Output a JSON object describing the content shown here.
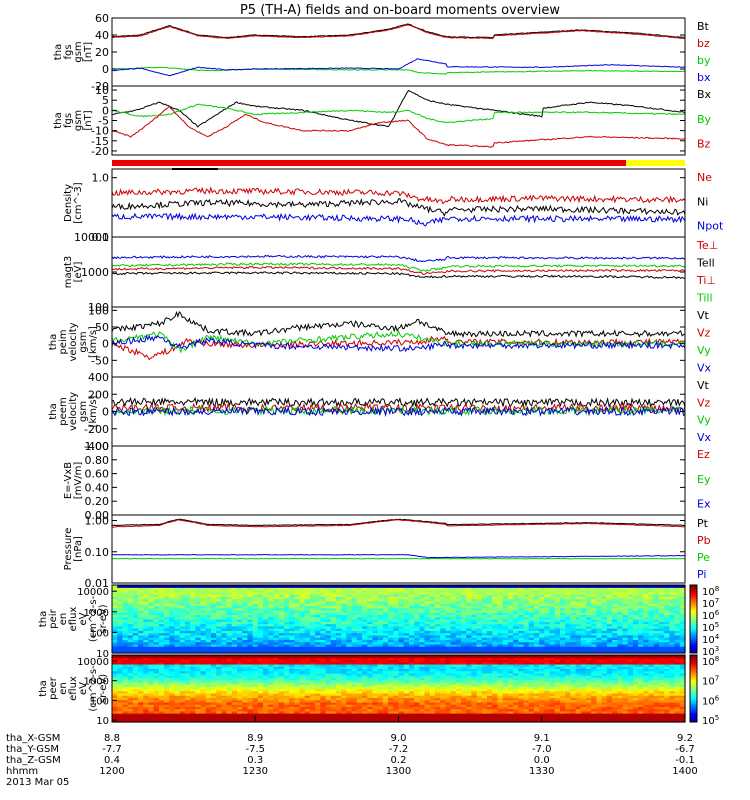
{
  "title": "P5 (TH-A) fields and on-board moments overview",
  "colors": {
    "black": "#000000",
    "red": "#cc0000",
    "bright_red": "#ee0000",
    "green": "#00cc00",
    "blue": "#0000dd",
    "yellow": "#ffff00"
  },
  "x_axis": {
    "hhmm_ticks": [
      "1200",
      "1230",
      "1300",
      "1330",
      "1400"
    ],
    "rows": [
      {
        "label": "tha_X-GSM",
        "values": [
          "8.8",
          "8.9",
          "9.0",
          "9.1",
          "9.2"
        ]
      },
      {
        "label": "tha_Y-GSM",
        "values": [
          "-7.7",
          "-7.5",
          "-7.2",
          "-7.0",
          "-6.7"
        ]
      },
      {
        "label": "tha_Z-GSM",
        "values": [
          "0.4",
          "0.3",
          "0.2",
          "0.0",
          "-0.1"
        ]
      },
      {
        "label": "hhmm",
        "values": [
          "1200",
          "1230",
          "1300",
          "1330",
          "1400"
        ]
      }
    ],
    "date": "2013 Mar 05"
  },
  "chart_data": [
    {
      "type": "line",
      "ylabel": [
        "tha",
        "fgs",
        "gsm",
        "[nT]"
      ],
      "ylim": [
        -20,
        60
      ],
      "yticks": [
        "60",
        "40",
        "20",
        "0",
        "-20"
      ],
      "legend": [
        {
          "label": "Bt",
          "color": "#000000"
        },
        {
          "label": "bz",
          "color": "#cc0000"
        },
        {
          "label": "by",
          "color": "#00cc00"
        },
        {
          "label": "bx",
          "color": "#0000dd"
        }
      ],
      "series": [
        {
          "name": "Bt",
          "color": "#000000",
          "x": [
            1200,
            1206,
            1212,
            1218,
            1224,
            1230,
            1240,
            1250,
            1258,
            1262,
            1266,
            1270,
            1280,
            1300,
            1320,
            1338,
            1350,
            1360,
            1400
          ],
          "y": [
            38,
            40,
            51,
            40,
            37,
            40,
            38,
            40,
            47,
            53,
            44,
            38,
            37,
            38,
            40,
            46,
            42,
            37,
            37
          ]
        },
        {
          "name": "bz",
          "color": "#cc0000",
          "x": [
            1200,
            1206,
            1212,
            1218,
            1224,
            1230,
            1240,
            1250,
            1258,
            1262,
            1266,
            1270,
            1280,
            1300,
            1320,
            1338,
            1350,
            1360,
            1400
          ],
          "y": [
            37,
            39,
            50,
            39,
            36,
            39,
            37,
            39,
            46,
            52,
            43,
            37,
            36,
            37,
            39,
            45,
            41,
            36,
            36
          ]
        },
        {
          "name": "by",
          "color": "#00cc00",
          "x": [
            1200,
            1210,
            1220,
            1230,
            1250,
            1262,
            1264,
            1270,
            1300,
            1340,
            1360,
            1400
          ],
          "y": [
            0,
            2,
            -2,
            0,
            -1,
            -1,
            -4,
            -6,
            -5,
            -2,
            -3,
            -3
          ]
        },
        {
          "name": "bx",
          "color": "#0000dd",
          "x": [
            1200,
            1206,
            1212,
            1218,
            1224,
            1230,
            1250,
            1260,
            1264,
            1270,
            1300,
            1330,
            1345,
            1360,
            1400
          ],
          "y": [
            -2,
            1,
            -8,
            2,
            -1,
            0,
            1,
            0,
            12,
            6,
            3,
            2,
            5,
            2,
            3
          ]
        }
      ]
    },
    {
      "type": "line",
      "ylabel": [
        "tha",
        "fgs",
        "gsm",
        "[nT]"
      ],
      "ylim": [
        -22,
        12
      ],
      "yticks": [
        "10",
        "5",
        "0",
        "-5",
        "-10",
        "-15",
        "-20"
      ],
      "legend": [
        {
          "label": "Bx",
          "color": "#000000"
        },
        {
          "label": "By",
          "color": "#00cc00"
        },
        {
          "label": "Bz",
          "color": "#cc0000"
        }
      ],
      "series": [
        {
          "name": "Bx",
          "color": "#000000",
          "x": [
            1200,
            1205,
            1210,
            1214,
            1218,
            1222,
            1226,
            1230,
            1240,
            1250,
            1258,
            1262,
            1266,
            1270,
            1280,
            1290,
            1300,
            1320,
            1340,
            1350,
            1360,
            1400
          ],
          "y": [
            -2,
            0,
            4,
            0,
            -8,
            -2,
            4,
            2,
            0,
            -5,
            -8,
            10,
            5,
            3,
            0,
            -3,
            -2,
            -2,
            4,
            2,
            -1,
            2
          ]
        },
        {
          "name": "By",
          "color": "#00cc00",
          "x": [
            1200,
            1206,
            1212,
            1218,
            1224,
            1230,
            1240,
            1250,
            1258,
            1262,
            1266,
            1270,
            1280,
            1300,
            1320,
            1340,
            1360,
            1400
          ],
          "y": [
            0,
            -3,
            -2,
            3,
            1,
            -2,
            -1,
            0,
            -1,
            0,
            -4,
            -6,
            -4,
            -2,
            -1,
            -1,
            -2,
            -2
          ]
        },
        {
          "name": "Bz",
          "color": "#cc0000",
          "x": [
            1200,
            1204,
            1208,
            1212,
            1216,
            1220,
            1224,
            1228,
            1232,
            1240,
            1250,
            1256,
            1262,
            1266,
            1270,
            1280,
            1300,
            1320,
            1340,
            1360,
            1380,
            1400
          ],
          "y": [
            -10,
            -13,
            -6,
            2,
            -8,
            -13,
            -8,
            -2,
            -6,
            -10,
            -10,
            -6,
            -5,
            -14,
            -17,
            -18,
            -15,
            -16,
            -13,
            -14,
            -15,
            -15
          ]
        }
      ]
    },
    {
      "type": "line",
      "ylabel": [
        "Density",
        "[cm^-3]"
      ],
      "yscale": "log",
      "ylim": [
        0.1,
        1.4
      ],
      "yticks": [
        "1.0",
        "0.1"
      ],
      "legend": [
        {
          "label": "Ne",
          "color": "#cc0000"
        },
        {
          "label": "Ni",
          "color": "#000000"
        },
        {
          "label": "Npot",
          "color": "#0000dd"
        }
      ],
      "series": [
        {
          "name": "Ne",
          "color": "#cc0000",
          "x": [
            1200,
            1220,
            1240,
            1260,
            1264,
            1270,
            1300,
            1330,
            1360,
            1400
          ],
          "y": [
            0.55,
            0.6,
            0.58,
            0.55,
            0.45,
            0.38,
            0.42,
            0.45,
            0.42,
            0.4
          ]
        },
        {
          "name": "Ni",
          "color": "#000000",
          "x": [
            1200,
            1220,
            1240,
            1260,
            1264,
            1270,
            1300,
            1330,
            1360,
            1400
          ],
          "y": [
            0.32,
            0.38,
            0.35,
            0.4,
            0.32,
            0.25,
            0.28,
            0.3,
            0.26,
            0.28
          ]
        },
        {
          "name": "Npot",
          "color": "#0000dd",
          "x": [
            1200,
            1230,
            1262,
            1265,
            1270,
            1300,
            1340,
            1400
          ],
          "y": [
            0.22,
            0.22,
            0.2,
            0.16,
            0.2,
            0.21,
            0.2,
            0.2
          ]
        }
      ]
    },
    {
      "type": "line",
      "ylabel": [
        "magt3",
        "[eV]"
      ],
      "yscale": "log",
      "ylim": [
        100,
        10000
      ],
      "yticks": [
        "10000",
        "1000",
        "100"
      ],
      "legend": [
        {
          "label": "Te⊥",
          "color": "#cc0000"
        },
        {
          "label": "Tell",
          "color": "#000000"
        },
        {
          "label": "Ti⊥",
          "color": "#cc0000"
        },
        {
          "label": "Till",
          "color": "#00cc00"
        }
      ],
      "series": [
        {
          "name": "Ti_blue",
          "color": "#0000dd",
          "x": [
            1200,
            1230,
            1260,
            1265,
            1270,
            1300,
            1340,
            1400
          ],
          "y": [
            2600,
            2800,
            2700,
            2000,
            2300,
            2600,
            2500,
            2500
          ]
        },
        {
          "name": "Till",
          "color": "#00cc00",
          "x": [
            1200,
            1230,
            1260,
            1265,
            1270,
            1300,
            1340,
            1400
          ],
          "y": [
            1500,
            1700,
            1600,
            1100,
            1300,
            1450,
            1500,
            1500
          ]
        },
        {
          "name": "Ti⊥",
          "color": "#cc0000",
          "x": [
            1200,
            1230,
            1260,
            1265,
            1270,
            1300,
            1340,
            1400
          ],
          "y": [
            1200,
            1350,
            1250,
            900,
            1000,
            1050,
            1100,
            1100
          ]
        },
        {
          "name": "Tell",
          "color": "#000000",
          "x": [
            1200,
            1230,
            1260,
            1265,
            1270,
            1300,
            1340,
            1400
          ],
          "y": [
            900,
            950,
            900,
            700,
            750,
            760,
            750,
            700
          ]
        }
      ]
    },
    {
      "type": "line",
      "ylabel": [
        "tha",
        "peim",
        "velocity",
        "gsm",
        "[km/s]"
      ],
      "ylim": [
        -100,
        110
      ],
      "yticks": [
        "100",
        "50",
        "0",
        "-50"
      ],
      "legend": [
        {
          "label": "Vt",
          "color": "#000000"
        },
        {
          "label": "Vz",
          "color": "#cc0000"
        },
        {
          "label": "Vy",
          "color": "#00cc00"
        },
        {
          "label": "Vx",
          "color": "#0000dd"
        }
      ],
      "series": [
        {
          "name": "Vt",
          "color": "#000000",
          "x": [
            1200,
            1210,
            1214,
            1220,
            1230,
            1240,
            1250,
            1260,
            1264,
            1270,
            1300,
            1400
          ],
          "y": [
            40,
            60,
            90,
            40,
            30,
            50,
            60,
            45,
            70,
            30,
            30,
            30
          ]
        },
        {
          "name": "Vz",
          "color": "#cc0000",
          "x": [
            1200,
            1208,
            1212,
            1216,
            1220,
            1230,
            1264,
            1270,
            1300,
            1400
          ],
          "y": [
            0,
            -40,
            -20,
            10,
            0,
            -5,
            5,
            20,
            5,
            5
          ]
        },
        {
          "name": "Vy",
          "color": "#00cc00",
          "x": [
            1200,
            1210,
            1214,
            1220,
            1230,
            1250,
            1260,
            1270,
            1300,
            1400
          ],
          "y": [
            10,
            30,
            -20,
            20,
            0,
            20,
            30,
            0,
            0,
            0
          ]
        },
        {
          "name": "Vx",
          "color": "#0000dd",
          "x": [
            1200,
            1210,
            1214,
            1220,
            1230,
            1264,
            1270,
            1300,
            1400
          ],
          "y": [
            0,
            20,
            -10,
            10,
            -5,
            -15,
            0,
            -5,
            -5
          ]
        }
      ]
    },
    {
      "type": "line",
      "ylabel": [
        "tha",
        "peem",
        "velocity",
        "gsm",
        "[km/s]"
      ],
      "ylim": [
        -400,
        400
      ],
      "yticks": [
        "400",
        "200",
        "0",
        "-200",
        "-400"
      ],
      "legend": [
        {
          "label": "Vt",
          "color": "#000000"
        },
        {
          "label": "Vz",
          "color": "#cc0000"
        },
        {
          "label": "Vy",
          "color": "#00cc00"
        },
        {
          "label": "Vx",
          "color": "#0000dd"
        }
      ],
      "series": [
        {
          "name": "Vt",
          "color": "#000000",
          "x": [
            1200,
            1400
          ],
          "y": [
            110,
            100
          ]
        },
        {
          "name": "Vz",
          "color": "#cc0000",
          "x": [
            1200,
            1400
          ],
          "y": [
            40,
            40
          ]
        },
        {
          "name": "Vy",
          "color": "#00cc00",
          "x": [
            1200,
            1400
          ],
          "y": [
            10,
            10
          ]
        },
        {
          "name": "Vx",
          "color": "#0000dd",
          "x": [
            1200,
            1400
          ],
          "y": [
            0,
            0
          ]
        }
      ]
    },
    {
      "type": "line",
      "ylabel": [
        "E=-VxB",
        "[mV/m]"
      ],
      "ylim": [
        0,
        1
      ],
      "yticks": [
        "1.00",
        "0.80",
        "0.60",
        "0.40",
        "0.20",
        "0.00"
      ],
      "legend": [
        {
          "label": "Ez",
          "color": "#cc0000"
        },
        {
          "label": "Ey",
          "color": "#00cc00"
        },
        {
          "label": "Ex",
          "color": "#0000dd"
        }
      ],
      "series": []
    },
    {
      "type": "line",
      "ylabel": [
        "Pressure",
        "[nPa]"
      ],
      "yscale": "log",
      "ylim": [
        0.01,
        1.5
      ],
      "yticks": [
        "1.00",
        "0.10",
        "0.01"
      ],
      "legend": [
        {
          "label": "Pt",
          "color": "#000000"
        },
        {
          "label": "Pb",
          "color": "#cc0000"
        },
        {
          "label": "Pe",
          "color": "#00cc00"
        },
        {
          "label": "Pi",
          "color": "#0000dd"
        }
      ],
      "series": [
        {
          "name": "Pt",
          "color": "#000000",
          "x": [
            1200,
            1210,
            1214,
            1220,
            1230,
            1250,
            1260,
            1270,
            1300,
            1340,
            1360,
            1400
          ],
          "y": [
            0.7,
            0.75,
            1.1,
            0.75,
            0.7,
            0.75,
            1.1,
            0.8,
            0.7,
            0.85,
            0.7,
            0.7
          ]
        },
        {
          "name": "Pb",
          "color": "#cc0000",
          "x": [
            1200,
            1210,
            1214,
            1220,
            1230,
            1250,
            1260,
            1270,
            1300,
            1340,
            1360,
            1400
          ],
          "y": [
            0.62,
            0.7,
            1.05,
            0.7,
            0.63,
            0.7,
            1.05,
            0.75,
            0.63,
            0.8,
            0.63,
            0.63
          ]
        },
        {
          "name": "Pe",
          "color": "#00cc00",
          "x": [
            1200,
            1400
          ],
          "y": [
            0.06,
            0.06
          ]
        },
        {
          "name": "Pi",
          "color": "#0000dd",
          "x": [
            1200,
            1262,
            1266,
            1400
          ],
          "y": [
            0.08,
            0.08,
            0.065,
            0.075
          ]
        }
      ]
    },
    {
      "type": "heatmap",
      "ylabel": [
        "tha",
        "peir",
        "en",
        "eflux",
        "eV",
        "(cm^2-s-",
        "sr-eV)"
      ],
      "yscale": "log",
      "ylim": [
        10,
        20000
      ],
      "yticks": [
        "10000",
        "1000",
        "100",
        "10"
      ],
      "colorbar": {
        "scale": "log",
        "ticks": [
          "10^8",
          "10^7",
          "10^6",
          "10^5",
          "10^4",
          "10^3"
        ]
      }
    },
    {
      "type": "heatmap",
      "ylabel": [
        "tha",
        "peer",
        "en",
        "eflux",
        "eV",
        "(cm^2-s-",
        "sr-eV)"
      ],
      "yscale": "log",
      "ylim": [
        8,
        20000
      ],
      "yticks": [
        "10000",
        "1000",
        "100",
        "10"
      ],
      "colorbar": {
        "scale": "log",
        "ticks": [
          "10^8",
          "10^7",
          "10^6",
          "10^5"
        ]
      }
    }
  ]
}
